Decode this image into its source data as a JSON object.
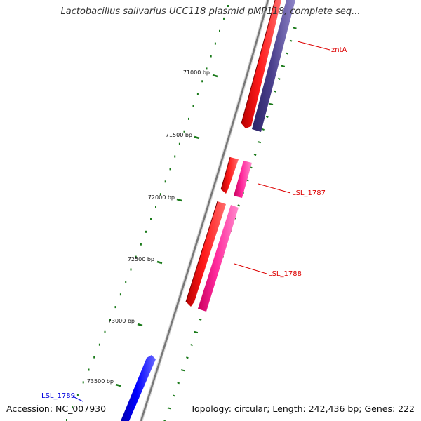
{
  "title": "Lactobacillus salivarius UCC118 plasmid pMP118, complete seq...",
  "accession": "Accession: NC_007930",
  "topology": "Topology: circular; Length: 242,436 bp; Genes: 222",
  "colors": {
    "backbone": "#808080",
    "forward_cds": "#ff0000",
    "reverse_cds": "#ff2a9d",
    "purple_cds": "#4a3f8c",
    "blue_cds": "#0000ff",
    "gc_marks": "#1a7a1a",
    "label_red": "#dd0000",
    "label_blue": "#0000dd"
  },
  "ticks": [
    "71000 bp",
    "71500 bp",
    "72000 bp",
    "72500 bp",
    "73000 bp",
    "73500 bp"
  ],
  "gene_labels": [
    {
      "text": "zntA",
      "color": "#dd0000"
    },
    {
      "text": "LSL_1787",
      "color": "#dd0000"
    },
    {
      "text": "LSL_1788",
      "color": "#dd0000"
    },
    {
      "text": "LSL_1789",
      "color": "#0000dd"
    }
  ]
}
